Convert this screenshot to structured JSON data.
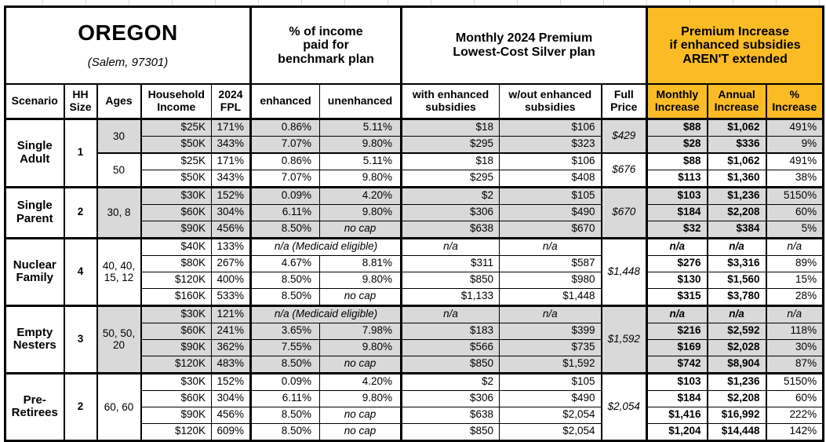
{
  "title": {
    "region": "OREGON",
    "city": "(Salem, 97301)"
  },
  "colors": {
    "accent_orange": "#FBBB25",
    "shade_gray": "#D9D9D9",
    "border_black": "#000000"
  },
  "header": {
    "benchmark_group": "% of income\npaid for\nbenchmark plan",
    "premium_group": "Monthly 2024 Premium\nLowest-Cost Silver plan",
    "increase_group": "Premium Increase\nif enhanced subsidies\nAREN'T extended",
    "columns": {
      "scenario": "Scenario",
      "hh_size": "HH\nSize",
      "ages": "Ages",
      "household_income": "Household\nIncome",
      "fpl": "2024\nFPL",
      "enhanced": "enhanced",
      "unenhanced": "unenhanced",
      "with_subsidies": "with enhanced\nsubsidies",
      "without_subsidies": "w/out enhanced\nsubsidies",
      "full_price": "Full\nPrice",
      "monthly_increase": "Monthly\nIncrease",
      "annual_increase": "Annual\nIncrease",
      "pct_increase": "%\nIncrease"
    }
  },
  "groups": [
    {
      "scenario": "Single\nAdult",
      "hh_size": "1",
      "age_sets": [
        {
          "ages": "30",
          "shaded": true,
          "full_price": "$429",
          "rows": [
            {
              "income": "$25K",
              "fpl": "171%",
              "enhanced": "0.86%",
              "unenhanced": "5.11%",
              "with_subsidies": "$18",
              "without_subsidies": "$106",
              "monthly_increase": "$88",
              "annual_increase": "$1,062",
              "pct_increase": "491%"
            },
            {
              "income": "$50K",
              "fpl": "343%",
              "enhanced": "7.07%",
              "unenhanced": "9.80%",
              "with_subsidies": "$295",
              "without_subsidies": "$323",
              "monthly_increase": "$28",
              "annual_increase": "$336",
              "pct_increase": "9%"
            }
          ]
        },
        {
          "ages": "50",
          "shaded": false,
          "full_price": "$676",
          "rows": [
            {
              "income": "$25K",
              "fpl": "171%",
              "enhanced": "0.86%",
              "unenhanced": "5.11%",
              "with_subsidies": "$18",
              "without_subsidies": "$106",
              "monthly_increase": "$88",
              "annual_increase": "$1,062",
              "pct_increase": "491%"
            },
            {
              "income": "$50K",
              "fpl": "343%",
              "enhanced": "7.07%",
              "unenhanced": "9.80%",
              "with_subsidies": "$295",
              "without_subsidies": "$408",
              "monthly_increase": "$113",
              "annual_increase": "$1,360",
              "pct_increase": "38%"
            }
          ]
        }
      ]
    },
    {
      "scenario": "Single\nParent",
      "hh_size": "2",
      "age_sets": [
        {
          "ages": "30, 8",
          "shaded": true,
          "full_price": "$670",
          "rows": [
            {
              "income": "$30K",
              "fpl": "152%",
              "enhanced": "0.09%",
              "unenhanced": "4.20%",
              "with_subsidies": "$2",
              "without_subsidies": "$105",
              "monthly_increase": "$103",
              "annual_increase": "$1,236",
              "pct_increase": "5150%"
            },
            {
              "income": "$60K",
              "fpl": "304%",
              "enhanced": "6.11%",
              "unenhanced": "9.80%",
              "with_subsidies": "$306",
              "without_subsidies": "$490",
              "monthly_increase": "$184",
              "annual_increase": "$2,208",
              "pct_increase": "60%"
            },
            {
              "income": "$90K",
              "fpl": "456%",
              "enhanced": "8.50%",
              "unenhanced": "no cap",
              "with_subsidies": "$638",
              "without_subsidies": "$670",
              "monthly_increase": "$32",
              "annual_increase": "$384",
              "pct_increase": "5%"
            }
          ]
        }
      ]
    },
    {
      "scenario": "Nuclear\nFamily",
      "hh_size": "4",
      "age_sets": [
        {
          "ages": "40, 40, 15, 12",
          "shaded": false,
          "full_price": "$1,448",
          "rows": [
            {
              "income": "$40K",
              "fpl": "133%",
              "benchmark_note": "n/a (Medicaid eligible)",
              "with_subsidies": "n/a",
              "without_subsidies": "n/a",
              "monthly_increase": "n/a",
              "annual_increase": "n/a",
              "pct_increase": "n/a"
            },
            {
              "income": "$80K",
              "fpl": "267%",
              "enhanced": "4.67%",
              "unenhanced": "8.81%",
              "with_subsidies": "$311",
              "without_subsidies": "$587",
              "monthly_increase": "$276",
              "annual_increase": "$3,316",
              "pct_increase": "89%"
            },
            {
              "income": "$120K",
              "fpl": "400%",
              "enhanced": "8.50%",
              "unenhanced": "9.80%",
              "with_subsidies": "$850",
              "without_subsidies": "$980",
              "monthly_increase": "$130",
              "annual_increase": "$1,560",
              "pct_increase": "15%"
            },
            {
              "income": "$160K",
              "fpl": "533%",
              "enhanced": "8.50%",
              "unenhanced": "no cap",
              "with_subsidies": "$1,133",
              "without_subsidies": "$1,448",
              "monthly_increase": "$315",
              "annual_increase": "$3,780",
              "pct_increase": "28%"
            }
          ]
        }
      ]
    },
    {
      "scenario": "Empty\nNesters",
      "hh_size": "3",
      "age_sets": [
        {
          "ages": "50, 50, 20",
          "shaded": true,
          "full_price": "$1,592",
          "rows": [
            {
              "income": "$30K",
              "fpl": "121%",
              "benchmark_note": "n/a (Medicaid eligible)",
              "with_subsidies": "n/a",
              "without_subsidies": "n/a",
              "monthly_increase": "n/a",
              "annual_increase": "n/a",
              "pct_increase": "n/a"
            },
            {
              "income": "$60K",
              "fpl": "241%",
              "enhanced": "3.65%",
              "unenhanced": "7.98%",
              "with_subsidies": "$183",
              "without_subsidies": "$399",
              "monthly_increase": "$216",
              "annual_increase": "$2,592",
              "pct_increase": "118%"
            },
            {
              "income": "$90K",
              "fpl": "362%",
              "enhanced": "7.55%",
              "unenhanced": "9.80%",
              "with_subsidies": "$566",
              "without_subsidies": "$735",
              "monthly_increase": "$169",
              "annual_increase": "$2,028",
              "pct_increase": "30%"
            },
            {
              "income": "$120K",
              "fpl": "483%",
              "enhanced": "8.50%",
              "unenhanced": "no cap",
              "with_subsidies": "$850",
              "without_subsidies": "$1,592",
              "monthly_increase": "$742",
              "annual_increase": "$8,904",
              "pct_increase": "87%"
            }
          ]
        }
      ]
    },
    {
      "scenario": "Pre-\nRetirees",
      "hh_size": "2",
      "age_sets": [
        {
          "ages": "60, 60",
          "shaded": false,
          "full_price": "$2,054",
          "rows": [
            {
              "income": "$30K",
              "fpl": "152%",
              "enhanced": "0.09%",
              "unenhanced": "4.20%",
              "with_subsidies": "$2",
              "without_subsidies": "$105",
              "monthly_increase": "$103",
              "annual_increase": "$1,236",
              "pct_increase": "5150%"
            },
            {
              "income": "$60K",
              "fpl": "304%",
              "enhanced": "6.11%",
              "unenhanced": "9.80%",
              "with_subsidies": "$306",
              "without_subsidies": "$490",
              "monthly_increase": "$184",
              "annual_increase": "$2,208",
              "pct_increase": "60%"
            },
            {
              "income": "$90K",
              "fpl": "456%",
              "enhanced": "8.50%",
              "unenhanced": "no cap",
              "with_subsidies": "$638",
              "without_subsidies": "$2,054",
              "monthly_increase": "$1,416",
              "annual_increase": "$16,992",
              "pct_increase": "222%"
            },
            {
              "income": "$120K",
              "fpl": "609%",
              "enhanced": "8.50%",
              "unenhanced": "no cap",
              "with_subsidies": "$850",
              "without_subsidies": "$2,054",
              "monthly_increase": "$1,204",
              "annual_increase": "$14,448",
              "pct_increase": "142%"
            }
          ]
        }
      ]
    }
  ]
}
